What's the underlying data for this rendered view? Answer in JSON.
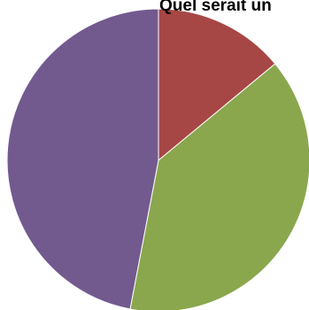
{
  "chart_data": {
    "type": "pie",
    "title": "Quel serait un",
    "start_angle_deg": 0,
    "direction": "clockwise",
    "slices": [
      {
        "value": 14,
        "color": "#A74745"
      },
      {
        "value": 39,
        "color": "#8AA74D"
      },
      {
        "value": 47,
        "color": "#725A8F"
      }
    ]
  }
}
